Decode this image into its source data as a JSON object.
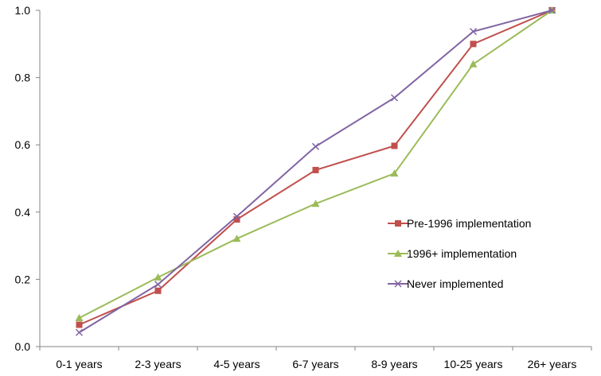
{
  "chart_data": {
    "type": "line",
    "title": "",
    "xlabel": "",
    "ylabel": "",
    "categories": [
      "0-1 years",
      "2-3 years",
      "4-5 years",
      "6-7 years",
      "8-9 years",
      "10-25 years",
      "26+ years"
    ],
    "ylim": [
      0,
      1.0
    ],
    "yticks": [
      "0.0",
      "0.2",
      "0.4",
      "0.6",
      "0.8",
      "1.0"
    ],
    "grid": false,
    "legend_position": "right-middle",
    "series": [
      {
        "name": "Pre-1996 implementation",
        "values": [
          0.065,
          0.166,
          0.378,
          0.525,
          0.597,
          0.9,
          1.0
        ],
        "color": "#C0504D",
        "marker": "square"
      },
      {
        "name": "1996+ implementation",
        "values": [
          0.085,
          0.206,
          0.321,
          0.425,
          0.515,
          0.84,
          1.0
        ],
        "color": "#9BBB59",
        "marker": "triangle"
      },
      {
        "name": "Never implemented",
        "values": [
          0.042,
          0.185,
          0.387,
          0.595,
          0.74,
          0.937,
          1.0
        ],
        "color": "#8064A2",
        "marker": "x"
      }
    ]
  }
}
